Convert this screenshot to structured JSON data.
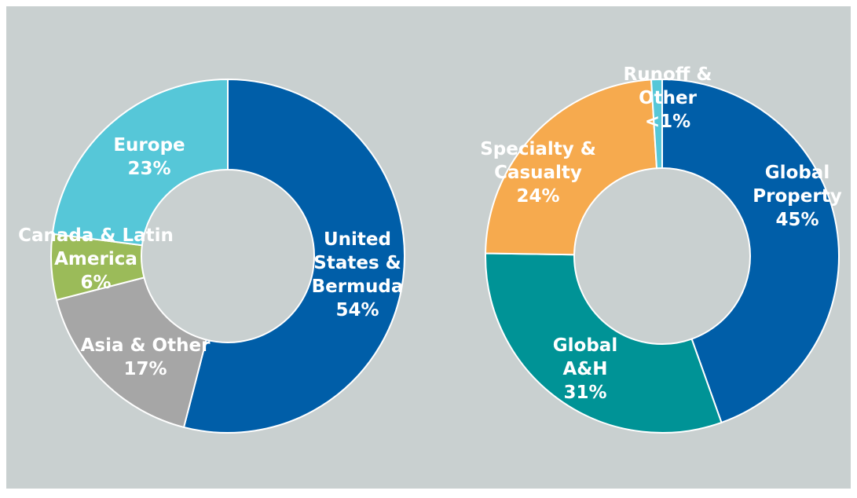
{
  "chart_data": [
    {
      "type": "donut",
      "categories": [
        "United States & Bermuda",
        "Asia & Other",
        "Canada & Latin America",
        "Europe"
      ],
      "values": [
        54,
        17,
        6,
        23
      ],
      "value_labels": [
        "54%",
        "17%",
        "6%",
        "23%"
      ],
      "colors": [
        "#005ea8",
        "#a6a6a6",
        "#9bbb59",
        "#56c7d8"
      ]
    },
    {
      "type": "donut",
      "categories": [
        "Global Property",
        "Global A&H",
        "Specialty & Casualty",
        "Runoff & Other"
      ],
      "values": [
        45,
        31,
        24,
        1
      ],
      "value_labels": [
        "45%",
        "31%",
        "24%",
        "<1%"
      ],
      "colors": [
        "#005ea8",
        "#009396",
        "#f6aa4e",
        "#56c7d8"
      ]
    }
  ]
}
